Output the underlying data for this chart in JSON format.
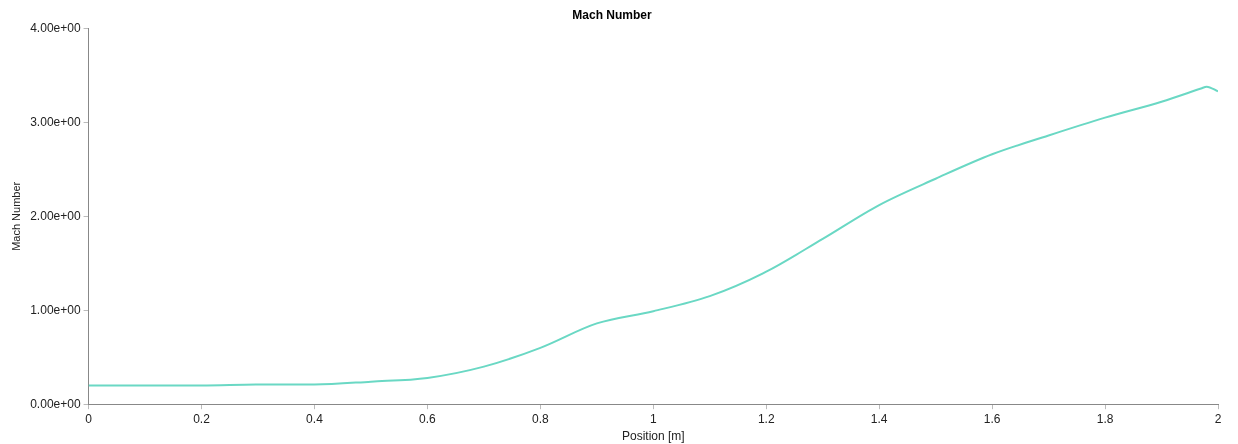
{
  "chart_data": {
    "type": "line",
    "title": "Mach Number",
    "xlabel": "Position [m]",
    "ylabel": "Mach Number",
    "series": [
      {
        "color": "#6ad8c4",
        "x": [
          0,
          0.1,
          0.2,
          0.3,
          0.4,
          0.5,
          0.6,
          0.7,
          0.8,
          0.9,
          1.0,
          1.1,
          1.2,
          1.3,
          1.4,
          1.5,
          1.6,
          1.7,
          1.8,
          1.9,
          1.97,
          1.98,
          2.0
        ],
        "values": [
          0.2,
          0.2,
          0.2,
          0.21,
          0.21,
          0.24,
          0.28,
          0.4,
          0.6,
          0.86,
          0.99,
          1.15,
          1.41,
          1.76,
          2.12,
          2.4,
          2.66,
          2.86,
          3.05,
          3.22,
          3.36,
          3.38,
          3.33
        ]
      }
    ],
    "xlim": [
      0,
      2
    ],
    "xticks": [
      0,
      0.2,
      0.4,
      0.6,
      0.8,
      1,
      1.2,
      1.4,
      1.6,
      1.8,
      2
    ],
    "ylim": [
      0,
      4
    ],
    "yticks": [
      {
        "value": 0,
        "label": "0.00e+00"
      },
      {
        "value": 1,
        "label": "1.00e+00"
      },
      {
        "value": 2,
        "label": "2.00e+00"
      },
      {
        "value": 3,
        "label": "3.00e+00"
      },
      {
        "value": 4,
        "label": "4.00e+00"
      }
    ],
    "legend": false,
    "marker": "none",
    "line_style": "solid"
  }
}
